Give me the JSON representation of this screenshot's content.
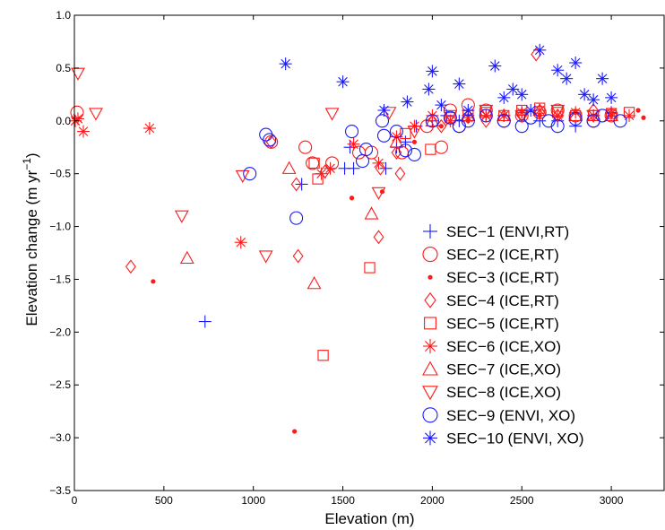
{
  "chart_data": {
    "type": "scatter",
    "title": "",
    "xlabel": "Elevation (m)",
    "ylabel_main": "Elevation change (m yr",
    "ylabel_sup": "−1",
    "ylabel_end": ")",
    "xlim": [
      0,
      3300
    ],
    "ylim": [
      -3.5,
      1.0
    ],
    "x_ticks": [
      0,
      500,
      1000,
      1500,
      2000,
      2500,
      3000
    ],
    "x_tick_labels": [
      "0",
      "500",
      "1000",
      "1500",
      "2000",
      "2500",
      "3000"
    ],
    "y_ticks": [
      1.0,
      0.5,
      0.0,
      -0.5,
      -1.0,
      -1.5,
      -2.0,
      -2.5,
      -3.0,
      -3.5
    ],
    "y_tick_labels": [
      "1.0",
      "0.5",
      "0.0",
      "−0.5",
      "−1.0",
      "−1.5",
      "−2.0",
      "−2.5",
      "−3.0",
      "−3.5"
    ],
    "grid": false,
    "legend_position": "lower-right",
    "colors": {
      "blue": "#1a1aff",
      "red": "#ff1a1a"
    },
    "series": [
      {
        "name": "SEC−1 (ENVI,RT)",
        "marker": "plus",
        "color": "blue",
        "x": [
          730,
          1270,
          1510,
          1540,
          1560,
          1740,
          1800,
          1850,
          1910,
          2000,
          2080,
          2150,
          2200,
          2300,
          2400,
          2500,
          2600,
          2700,
          2800,
          2900,
          3000
        ],
        "y": [
          -1.9,
          -0.6,
          -0.45,
          -0.25,
          -0.45,
          -0.45,
          -0.25,
          -0.2,
          -0.05,
          0.0,
          0.05,
          0.0,
          0.05,
          0.05,
          0.05,
          0.08,
          0.0,
          0.0,
          -0.05,
          0.05,
          0.08
        ]
      },
      {
        "name": "SEC−2 (ICE,RT)",
        "marker": "circle",
        "color": "red",
        "x": [
          15,
          1100,
          1290,
          1330,
          1440,
          1590,
          1660,
          1830,
          1970,
          2050,
          2100,
          2150,
          2200,
          2300,
          2400,
          2500,
          2600,
          2700,
          2800,
          2900,
          3000
        ],
        "y": [
          0.08,
          -0.2,
          -0.25,
          -0.4,
          -0.4,
          -0.3,
          -0.3,
          -0.3,
          -0.05,
          -0.25,
          0.1,
          -0.05,
          0.15,
          0.1,
          0.0,
          0.05,
          0.08,
          0.1,
          0.05,
          0.0,
          0.05
        ]
      },
      {
        "name": "SEC−3 (ICE,RT)",
        "marker": "dot",
        "color": "red",
        "x": [
          440,
          1230,
          1550,
          1720,
          1900,
          2050,
          2200,
          2400,
          2600,
          2800,
          3000,
          3150,
          3180
        ],
        "y": [
          -1.52,
          -2.94,
          -0.73,
          -0.67,
          -0.2,
          -0.05,
          0.0,
          0.05,
          0.05,
          0.08,
          0.05,
          0.1,
          0.03
        ]
      },
      {
        "name": "SEC−4 (ICE,RT)",
        "marker": "diamond",
        "color": "red",
        "x": [
          315,
          1100,
          1240,
          1250,
          1400,
          1700,
          1710,
          1800,
          1820,
          2050,
          2300,
          2500,
          2580,
          2700,
          2900
        ],
        "y": [
          -1.38,
          -0.2,
          -0.6,
          -1.28,
          -0.48,
          -1.1,
          -0.45,
          -0.3,
          -0.5,
          -0.05,
          0.0,
          0.05,
          0.63,
          0.05,
          0.1
        ]
      },
      {
        "name": "SEC−5 (ICE,RT)",
        "marker": "square",
        "color": "red",
        "x": [
          1340,
          1360,
          1390,
          1650,
          1850,
          1990,
          2100,
          2200,
          2300,
          2400,
          2500,
          2600,
          2700,
          2800,
          2900,
          3000,
          3100
        ],
        "y": [
          -0.4,
          -0.55,
          -2.22,
          -1.39,
          -0.12,
          -0.27,
          0.03,
          0.05,
          0.08,
          0.05,
          0.1,
          0.12,
          0.08,
          0.05,
          0.05,
          0.07,
          0.08
        ]
      },
      {
        "name": "SEC−6 (ICE,XO)",
        "marker": "asterisk",
        "color": "red",
        "x": [
          5,
          20,
          50,
          420,
          930,
          1380,
          1430,
          1560,
          1700,
          1800,
          1900,
          2000,
          2100,
          2200,
          2300,
          2400,
          2500,
          2600,
          2700,
          2800,
          2900,
          3000,
          3100
        ],
        "y": [
          0.0,
          0.02,
          -0.1,
          -0.07,
          -1.15,
          -0.5,
          -0.45,
          -0.22,
          -0.4,
          -0.15,
          -0.05,
          0.05,
          0.0,
          0.03,
          0.05,
          0.05,
          0.08,
          0.1,
          0.05,
          0.08,
          0.05,
          0.07,
          0.05
        ]
      },
      {
        "name": "SEC−7 (ICE,XO)",
        "marker": "triangle-up",
        "color": "red",
        "x": [
          630,
          1200,
          1340,
          1660,
          1800,
          2000,
          2200,
          2400,
          2600,
          2800,
          3000
        ],
        "y": [
          -1.3,
          -0.45,
          -1.54,
          -0.88,
          -0.2,
          0.0,
          0.05,
          0.05,
          0.1,
          0.05,
          0.05
        ]
      },
      {
        "name": "SEC−8 (ICE,XO)",
        "marker": "triangle-down",
        "color": "red",
        "x": [
          20,
          120,
          600,
          940,
          1070,
          1440,
          1700,
          1760,
          1900,
          2100,
          2300,
          2500,
          2700,
          2900
        ],
        "y": [
          0.45,
          0.07,
          -0.9,
          -0.52,
          -1.28,
          0.07,
          -0.68,
          0.08,
          -0.1,
          0.05,
          0.1,
          0.05,
          0.1,
          0.05
        ]
      },
      {
        "name": "SEC−9 (ENVI, XO)",
        "marker": "circle",
        "color": "blue",
        "x": [
          980,
          1070,
          1090,
          1240,
          1550,
          1610,
          1630,
          1720,
          1730,
          1800,
          1850,
          1900,
          2000,
          2100,
          2150,
          2200,
          2300,
          2400,
          2500,
          2550,
          2650,
          2700,
          2800,
          2900,
          2950,
          3050
        ],
        "y": [
          -0.5,
          -0.13,
          -0.18,
          -0.92,
          -0.1,
          -0.38,
          -0.27,
          0.0,
          -0.14,
          -0.1,
          -0.28,
          -0.32,
          0.0,
          0.03,
          -0.05,
          0.0,
          0.05,
          0.0,
          -0.05,
          0.03,
          0.0,
          -0.05,
          0.02,
          0.0,
          0.05,
          0.0
        ]
      },
      {
        "name": "SEC−10 (ENVI, XO)",
        "marker": "star",
        "color": "blue",
        "x": [
          1180,
          1500,
          1730,
          1860,
          1980,
          2000,
          2050,
          2150,
          2200,
          2350,
          2400,
          2450,
          2500,
          2550,
          2600,
          2700,
          2750,
          2800,
          2850,
          2900,
          2950,
          3000
        ],
        "y": [
          0.54,
          0.37,
          0.1,
          0.18,
          0.3,
          0.47,
          0.15,
          0.35,
          0.1,
          0.52,
          0.22,
          0.3,
          0.25,
          0.1,
          0.67,
          0.48,
          0.4,
          0.55,
          0.25,
          0.2,
          0.4,
          0.22
        ]
      }
    ]
  }
}
